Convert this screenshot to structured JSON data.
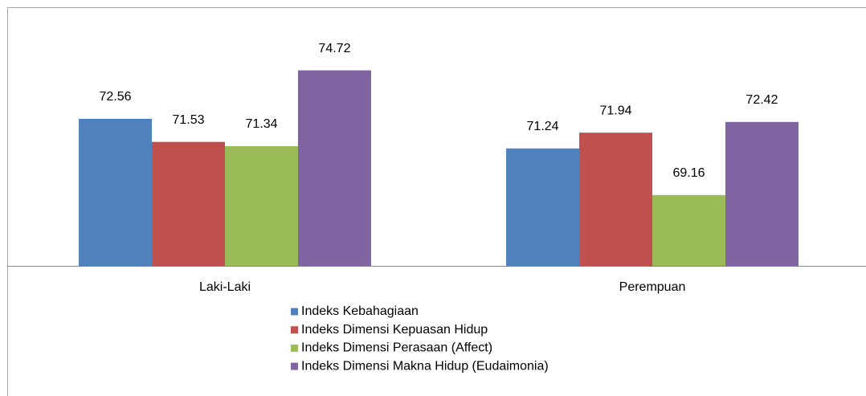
{
  "chart_data": {
    "type": "bar",
    "categories": [
      "Laki-Laki",
      "Perempuan"
    ],
    "series": [
      {
        "name": "Indeks Kebahagiaan",
        "color": "#4f81bd",
        "values": [
          72.56,
          71.24
        ]
      },
      {
        "name": "Indeks Dimensi Kepuasan Hidup",
        "color": "#c0504d",
        "values": [
          71.53,
          71.94
        ]
      },
      {
        "name": "Indeks Dimensi Perasaan (Affect)",
        "color": "#9bbb59",
        "values": [
          71.34,
          69.16
        ]
      },
      {
        "name": "Indeks Dimensi Makna Hidup (Eudaimonia)",
        "color": "#8064a2",
        "values": [
          74.72,
          72.42
        ]
      }
    ],
    "ylim": [
      66,
      77.5
    ],
    "legend": "bottom"
  }
}
